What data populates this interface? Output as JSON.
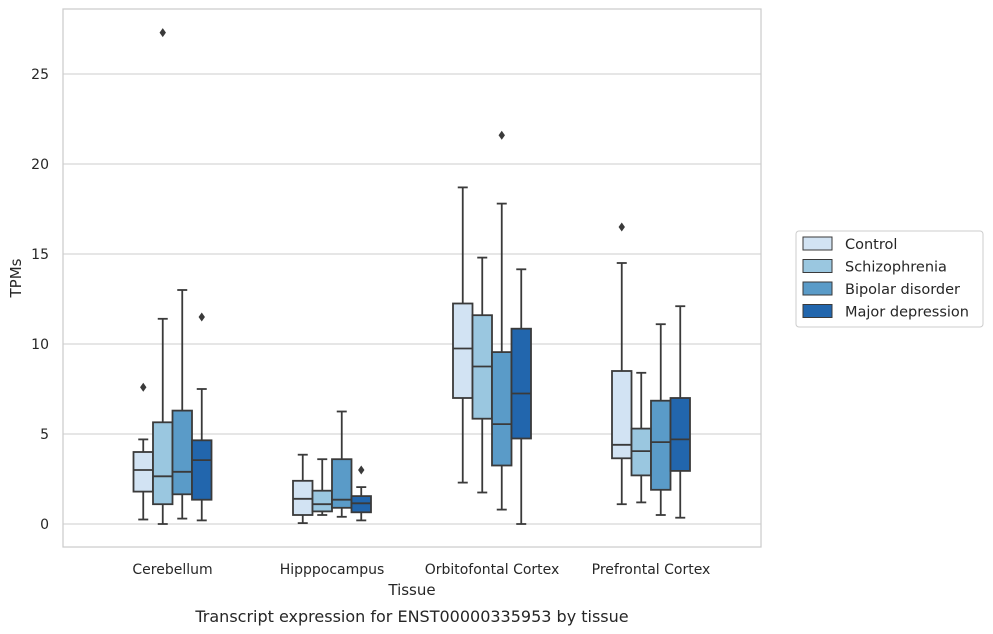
{
  "caption": "Transcript expression for ENST00000335953 by tissue",
  "chart_data": {
    "type": "box",
    "xlabel": "Tissue",
    "ylabel": "TPMs",
    "ylim": [
      -1.3,
      28.5
    ],
    "yticks": [
      0,
      5,
      10,
      15,
      20,
      25
    ],
    "grid": "horizontal",
    "legend_position": "right",
    "categories": [
      "Cerebellum",
      "Hipppocampus",
      "Orbitofontal Cortex",
      "Prefrontal Cortex"
    ],
    "series": [
      {
        "name": "Control",
        "color": "#d2e3f3",
        "boxes": [
          {
            "whislo": 0.25,
            "q1": 1.8,
            "med": 3.0,
            "q3": 4.0,
            "whishi": 4.7,
            "fliers": [
              7.6
            ]
          },
          {
            "whislo": 0.05,
            "q1": 0.5,
            "med": 1.4,
            "q3": 2.4,
            "whishi": 3.85,
            "fliers": []
          },
          {
            "whislo": 2.3,
            "q1": 7.0,
            "med": 9.75,
            "q3": 12.25,
            "whishi": 18.7,
            "fliers": []
          },
          {
            "whislo": 1.1,
            "q1": 3.65,
            "med": 4.4,
            "q3": 8.5,
            "whishi": 14.5,
            "fliers": [
              16.5
            ]
          }
        ]
      },
      {
        "name": "Schizophrenia",
        "color": "#9ac7e0",
        "boxes": [
          {
            "whislo": 0.0,
            "q1": 1.1,
            "med": 2.65,
            "q3": 5.65,
            "whishi": 11.4,
            "fliers": [
              27.3
            ]
          },
          {
            "whislo": 0.5,
            "q1": 0.7,
            "med": 1.1,
            "q3": 1.85,
            "whishi": 3.6,
            "fliers": []
          },
          {
            "whislo": 1.75,
            "q1": 5.85,
            "med": 8.75,
            "q3": 11.6,
            "whishi": 14.8,
            "fliers": []
          },
          {
            "whislo": 1.2,
            "q1": 2.7,
            "med": 4.05,
            "q3": 5.3,
            "whishi": 8.4,
            "fliers": []
          }
        ]
      },
      {
        "name": "Bipolar disorder",
        "color": "#5a9bc8",
        "boxes": [
          {
            "whislo": 0.3,
            "q1": 1.65,
            "med": 2.9,
            "q3": 6.3,
            "whishi": 13.0,
            "fliers": []
          },
          {
            "whislo": 0.4,
            "q1": 0.9,
            "med": 1.35,
            "q3": 3.6,
            "whishi": 6.25,
            "fliers": []
          },
          {
            "whislo": 0.8,
            "q1": 3.25,
            "med": 5.55,
            "q3": 9.55,
            "whishi": 17.8,
            "fliers": [
              21.6
            ]
          },
          {
            "whislo": 0.5,
            "q1": 1.9,
            "med": 4.55,
            "q3": 6.85,
            "whishi": 11.1,
            "fliers": []
          }
        ]
      },
      {
        "name": "Major depression",
        "color": "#2266ad",
        "boxes": [
          {
            "whislo": 0.2,
            "q1": 1.35,
            "med": 3.55,
            "q3": 4.65,
            "whishi": 7.5,
            "fliers": [
              11.5
            ]
          },
          {
            "whislo": 0.2,
            "q1": 0.65,
            "med": 1.15,
            "q3": 1.55,
            "whishi": 2.05,
            "fliers": [
              3.0
            ]
          },
          {
            "whislo": 0.0,
            "q1": 4.75,
            "med": 7.25,
            "q3": 10.85,
            "whishi": 14.15,
            "fliers": []
          },
          {
            "whislo": 0.35,
            "q1": 2.95,
            "med": 4.7,
            "q3": 7.0,
            "whishi": 12.1,
            "fliers": []
          }
        ]
      }
    ]
  }
}
